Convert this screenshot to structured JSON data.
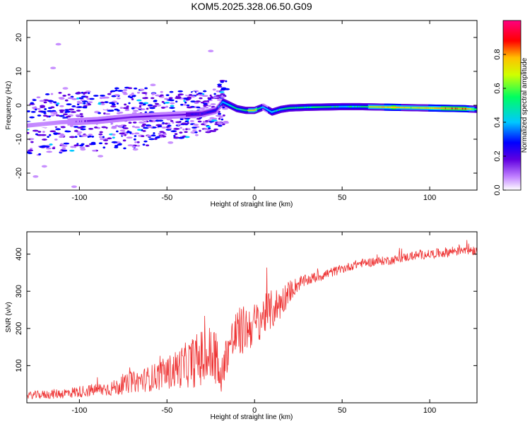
{
  "chart_data": [
    {
      "type": "heatmap",
      "title": "KOM5.2025.328.06.50.G09",
      "xlabel": "Height of straight line (km)",
      "ylabel": "Frequency (Hz)",
      "xlim": [
        -130,
        127
      ],
      "ylim": [
        -25,
        25
      ],
      "xticks": [
        -100,
        -50,
        0,
        50,
        100
      ],
      "yticks": [
        -20,
        -10,
        0,
        10,
        20
      ],
      "colorbar": {
        "label": "Normalized spectral amplitude",
        "range": [
          0,
          1
        ],
        "ticks": [
          0.0,
          0.2,
          0.4,
          0.6,
          0.8
        ],
        "colors": [
          "#ffffff",
          "#c080ff",
          "#6000e0",
          "#0000ff",
          "#00c8ff",
          "#00ff60",
          "#d0ff00",
          "#ffc000",
          "#ff0000",
          "#ff0080"
        ]
      },
      "ridge": {
        "x": [
          -130,
          -110,
          -90,
          -70,
          -50,
          -30,
          -22,
          -18,
          -10,
          -5,
          0,
          5,
          10,
          15,
          20,
          30,
          40,
          50,
          60,
          70,
          80,
          90,
          100,
          110,
          120,
          127
        ],
        "frequency": [
          -6,
          -5,
          -4.5,
          -3.5,
          -3,
          -2.5,
          -1.5,
          1,
          -1,
          -1.5,
          -1.5,
          -0.5,
          -2,
          -1.2,
          -0.8,
          -0.6,
          -0.5,
          -0.4,
          -0.4,
          -0.5,
          -0.6,
          -0.7,
          -0.8,
          -0.9,
          -1.0,
          -1.2
        ],
        "amplitude": [
          0.1,
          0.15,
          0.2,
          0.2,
          0.25,
          0.3,
          0.35,
          0.5,
          0.55,
          0.6,
          0.75,
          0.45,
          0.5,
          0.55,
          0.6,
          0.55,
          0.6,
          0.5,
          0.55,
          0.75,
          0.85,
          0.7,
          0.8,
          0.85,
          0.9,
          0.6
        ]
      },
      "scatter_blobs": [
        {
          "x": -115,
          "f": 11
        },
        {
          "x": -112,
          "f": 18
        },
        {
          "x": -110,
          "f": 2
        },
        {
          "x": -105,
          "f": -3
        },
        {
          "x": -100,
          "f": -8
        },
        {
          "x": -95,
          "f": 4
        },
        {
          "x": -90,
          "f": -2
        },
        {
          "x": -85,
          "f": -10
        },
        {
          "x": -80,
          "f": 1
        },
        {
          "x": -75,
          "f": -6
        },
        {
          "x": -70,
          "f": 3
        },
        {
          "x": -65,
          "f": -9
        },
        {
          "x": -60,
          "f": -4
        },
        {
          "x": -55,
          "f": 0
        },
        {
          "x": -45,
          "f": -7
        },
        {
          "x": -40,
          "f": 2
        },
        {
          "x": -35,
          "f": -8
        },
        {
          "x": -30,
          "f": -1
        },
        {
          "x": -25,
          "f": 16
        },
        {
          "x": -120,
          "f": -18
        },
        {
          "x": -125,
          "f": -21
        },
        {
          "x": -118,
          "f": -12
        },
        {
          "x": -108,
          "f": 5
        },
        {
          "x": -98,
          "f": -13
        },
        {
          "x": -88,
          "f": -15
        },
        {
          "x": -78,
          "f": -11
        },
        {
          "x": -68,
          "f": -13
        },
        {
          "x": -58,
          "f": 6
        },
        {
          "x": -48,
          "f": -11
        },
        {
          "x": -38,
          "f": 3
        },
        {
          "x": -28,
          "f": -5
        },
        {
          "x": -103,
          "f": -24
        }
      ]
    },
    {
      "type": "line",
      "xlabel": "Height of straight line (km)",
      "ylabel": "SNR (v/v)",
      "xlim": [
        -130,
        127
      ],
      "ylim": [
        0,
        460
      ],
      "xticks": [
        -100,
        -50,
        0,
        50,
        100
      ],
      "yticks": [
        100,
        200,
        300,
        400
      ],
      "series": [
        {
          "name": "SNR",
          "color": "#ee3333",
          "x": [
            -130,
            -120,
            -110,
            -100,
            -90,
            -80,
            -70,
            -60,
            -50,
            -40,
            -30,
            -22,
            -20,
            -15,
            -10,
            -5,
            0,
            5,
            10,
            15,
            20,
            25,
            30,
            40,
            50,
            60,
            70,
            80,
            90,
            100,
            110,
            120,
            127
          ],
          "values": [
            20,
            22,
            25,
            30,
            35,
            40,
            55,
            65,
            80,
            100,
            120,
            130,
            55,
            150,
            185,
            200,
            210,
            235,
            250,
            270,
            300,
            320,
            330,
            345,
            360,
            375,
            380,
            385,
            395,
            400,
            405,
            415,
            410
          ],
          "noise": [
            10,
            12,
            14,
            16,
            18,
            22,
            28,
            35,
            45,
            60,
            80,
            90,
            40,
            60,
            70,
            65,
            60,
            55,
            55,
            45,
            30,
            20,
            15,
            15,
            12,
            12,
            12,
            12,
            12,
            12,
            14,
            16,
            14
          ]
        }
      ]
    }
  ]
}
